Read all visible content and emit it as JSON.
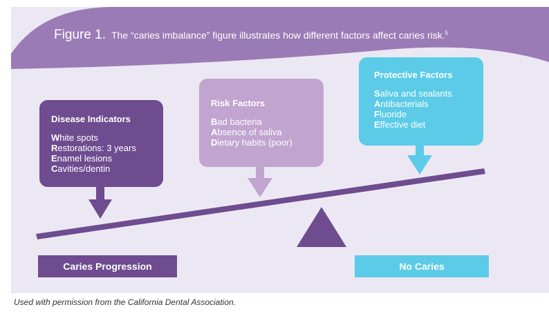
{
  "colors": {
    "header": "#9a7bb5",
    "panel": "#ece8f3",
    "disease": "#6e4c8f",
    "risk": "#c1a4d0",
    "protective": "#5bcbe8",
    "beam": "#6e4c8f"
  },
  "header": {
    "figure_label": "Figure 1.",
    "caption": "The “caries imbalance” figure illustrates how different factors affect caries risk.",
    "superscript": "5"
  },
  "boxes": {
    "disease": {
      "title": "Disease Indicators",
      "items": [
        {
          "initial": "W",
          "rest": "hite spots"
        },
        {
          "initial": "R",
          "rest": "estorations: 3 years"
        },
        {
          "initial": "E",
          "rest": "namel lesions"
        },
        {
          "initial": "C",
          "rest": "avities/dentin"
        }
      ]
    },
    "risk": {
      "title": "Risk Factors",
      "items": [
        {
          "initial": "B",
          "rest": "ad bacteria"
        },
        {
          "initial": "A",
          "rest": "bsence of saliva"
        },
        {
          "initial": "D",
          "rest": "ietary habits (poor)"
        }
      ]
    },
    "protective": {
      "title": "Protective Factors",
      "items": [
        {
          "initial": "S",
          "rest": "aliva and sealants"
        },
        {
          "initial": "A",
          "rest": "ntibacterials"
        },
        {
          "initial": "F",
          "rest": "luoride"
        },
        {
          "initial": "E",
          "rest": "ffective diet"
        }
      ]
    }
  },
  "labels": {
    "left": "Caries Progression",
    "right": "No Caries"
  },
  "footer": "Used with permission from the California Dental Association."
}
